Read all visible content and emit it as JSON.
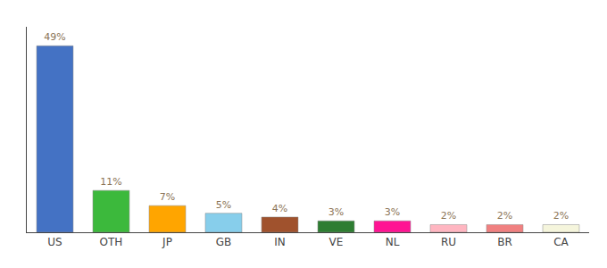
{
  "chart_data": {
    "type": "bar",
    "categories": [
      "US",
      "OTH",
      "JP",
      "GB",
      "IN",
      "VE",
      "NL",
      "RU",
      "BR",
      "CA"
    ],
    "values": [
      49,
      11,
      7,
      5,
      4,
      3,
      3,
      2,
      2,
      2
    ],
    "value_labels": [
      "49%",
      "11%",
      "7%",
      "5%",
      "4%",
      "3%",
      "3%",
      "2%",
      "2%",
      "2%"
    ],
    "colors": [
      "#4472C4",
      "#3CB93C",
      "#FFA500",
      "#87CEEB",
      "#A0522D",
      "#2E7D32",
      "#FF1493",
      "#FFB6C1",
      "#F08080",
      "#F5F5DC"
    ],
    "data_labels": true,
    "ylim": [
      0,
      54
    ],
    "grid": false,
    "tick_labels": "x"
  }
}
